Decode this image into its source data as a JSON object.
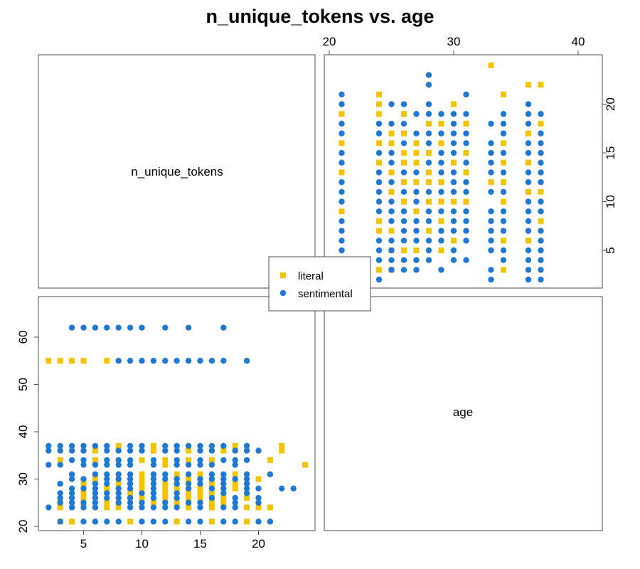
{
  "chart_data": {
    "type": "scatter",
    "title": "n_unique_tokens vs. age",
    "variables": [
      "n_unique_tokens",
      "age"
    ],
    "diagonal_labels": {
      "n_unique_tokens": "n_unique_tokens",
      "age": "age"
    },
    "axes": {
      "n_unique_tokens": {
        "range": [
          2,
          24
        ],
        "ticks": [
          5,
          10,
          15,
          20
        ]
      },
      "age": {
        "range": [
          21,
          62
        ],
        "ticks": [
          20,
          30,
          40,
          50,
          60
        ]
      }
    },
    "legend": {
      "placement": "center",
      "entries": [
        {
          "label": "literal",
          "color": "#F5C400",
          "marker": "square"
        },
        {
          "label": "sentimental",
          "color": "#1F78D2",
          "marker": "circle"
        }
      ]
    },
    "series": [
      {
        "name": "literal",
        "color": "#F5C400",
        "marker": "square",
        "points": [
          [
            3,
            21
          ],
          [
            4,
            21
          ],
          [
            9,
            21
          ],
          [
            13,
            21
          ],
          [
            16,
            21
          ],
          [
            19,
            21
          ],
          [
            3,
            24
          ],
          [
            7,
            24
          ],
          [
            8,
            24
          ],
          [
            14,
            24
          ],
          [
            16,
            24
          ],
          [
            19,
            24
          ],
          [
            20,
            24
          ],
          [
            21,
            24
          ],
          [
            3,
            25
          ],
          [
            5,
            25
          ],
          [
            7,
            25
          ],
          [
            11,
            25
          ],
          [
            13,
            25
          ],
          [
            16,
            25
          ],
          [
            17,
            25
          ],
          [
            5,
            26
          ],
          [
            10,
            26
          ],
          [
            12,
            26
          ],
          [
            14,
            26
          ],
          [
            15,
            26
          ],
          [
            17,
            26
          ],
          [
            19,
            26
          ],
          [
            5,
            27
          ],
          [
            9,
            27
          ],
          [
            12,
            27
          ],
          [
            14,
            27
          ],
          [
            15,
            27
          ],
          [
            16,
            27
          ],
          [
            7,
            28
          ],
          [
            10,
            28
          ],
          [
            12,
            28
          ],
          [
            13,
            28
          ],
          [
            15,
            28
          ],
          [
            18,
            28
          ],
          [
            5,
            29
          ],
          [
            8,
            29
          ],
          [
            10,
            29
          ],
          [
            12,
            29
          ],
          [
            16,
            29
          ],
          [
            18,
            29
          ],
          [
            6,
            30
          ],
          [
            10,
            30
          ],
          [
            14,
            30
          ],
          [
            20,
            30
          ],
          [
            10,
            31
          ],
          [
            13,
            31
          ],
          [
            15,
            31
          ],
          [
            18,
            31
          ],
          [
            12,
            33
          ],
          [
            24,
            33
          ],
          [
            3,
            34
          ],
          [
            6,
            34
          ],
          [
            10,
            34
          ],
          [
            12,
            34
          ],
          [
            14,
            34
          ],
          [
            16,
            34
          ],
          [
            21,
            34
          ],
          [
            6,
            36
          ],
          [
            11,
            36
          ],
          [
            14,
            36
          ],
          [
            17,
            36
          ],
          [
            22,
            36
          ],
          [
            8,
            37
          ],
          [
            11,
            37
          ],
          [
            18,
            37
          ],
          [
            22,
            37
          ],
          [
            2,
            55
          ],
          [
            3,
            55
          ],
          [
            4,
            55
          ],
          [
            5,
            55
          ],
          [
            7,
            55
          ]
        ]
      },
      {
        "name": "sentimental",
        "color": "#1F78D2",
        "marker": "circle",
        "points": [
          [
            3,
            21
          ],
          [
            5,
            21
          ],
          [
            6,
            21
          ],
          [
            7,
            21
          ],
          [
            8,
            21
          ],
          [
            10,
            21
          ],
          [
            11,
            21
          ],
          [
            12,
            21
          ],
          [
            14,
            21
          ],
          [
            15,
            21
          ],
          [
            17,
            21
          ],
          [
            18,
            21
          ],
          [
            20,
            21
          ],
          [
            21,
            21
          ],
          [
            2,
            24
          ],
          [
            4,
            24
          ],
          [
            5,
            24
          ],
          [
            6,
            24
          ],
          [
            9,
            24
          ],
          [
            10,
            24
          ],
          [
            11,
            24
          ],
          [
            12,
            24
          ],
          [
            13,
            24
          ],
          [
            15,
            24
          ],
          [
            17,
            24
          ],
          [
            18,
            24
          ],
          [
            3,
            25
          ],
          [
            4,
            25
          ],
          [
            5,
            25
          ],
          [
            6,
            25
          ],
          [
            8,
            25
          ],
          [
            9,
            25
          ],
          [
            10,
            25
          ],
          [
            12,
            25
          ],
          [
            14,
            25
          ],
          [
            15,
            25
          ],
          [
            18,
            25
          ],
          [
            20,
            25
          ],
          [
            3,
            26
          ],
          [
            4,
            26
          ],
          [
            6,
            26
          ],
          [
            7,
            26
          ],
          [
            8,
            26
          ],
          [
            9,
            26
          ],
          [
            11,
            26
          ],
          [
            13,
            26
          ],
          [
            16,
            26
          ],
          [
            18,
            26
          ],
          [
            20,
            26
          ],
          [
            3,
            27
          ],
          [
            4,
            27
          ],
          [
            6,
            27
          ],
          [
            7,
            27
          ],
          [
            8,
            27
          ],
          [
            10,
            27
          ],
          [
            11,
            27
          ],
          [
            13,
            27
          ],
          [
            17,
            27
          ],
          [
            19,
            27
          ],
          [
            4,
            28
          ],
          [
            5,
            28
          ],
          [
            6,
            28
          ],
          [
            8,
            28
          ],
          [
            9,
            28
          ],
          [
            11,
            28
          ],
          [
            14,
            28
          ],
          [
            16,
            28
          ],
          [
            17,
            28
          ],
          [
            19,
            28
          ],
          [
            20,
            28
          ],
          [
            22,
            28
          ],
          [
            23,
            28
          ],
          [
            3,
            29
          ],
          [
            6,
            29
          ],
          [
            7,
            29
          ],
          [
            9,
            29
          ],
          [
            11,
            29
          ],
          [
            13,
            29
          ],
          [
            14,
            29
          ],
          [
            15,
            29
          ],
          [
            17,
            29
          ],
          [
            19,
            29
          ],
          [
            4,
            30
          ],
          [
            5,
            30
          ],
          [
            7,
            30
          ],
          [
            8,
            30
          ],
          [
            9,
            30
          ],
          [
            11,
            30
          ],
          [
            12,
            30
          ],
          [
            13,
            30
          ],
          [
            15,
            30
          ],
          [
            16,
            30
          ],
          [
            17,
            30
          ],
          [
            18,
            30
          ],
          [
            19,
            30
          ],
          [
            4,
            31
          ],
          [
            6,
            31
          ],
          [
            7,
            31
          ],
          [
            8,
            31
          ],
          [
            9,
            31
          ],
          [
            11,
            31
          ],
          [
            12,
            31
          ],
          [
            14,
            31
          ],
          [
            16,
            31
          ],
          [
            17,
            31
          ],
          [
            19,
            31
          ],
          [
            21,
            31
          ],
          [
            2,
            33
          ],
          [
            3,
            33
          ],
          [
            5,
            33
          ],
          [
            6,
            33
          ],
          [
            7,
            33
          ],
          [
            8,
            33
          ],
          [
            9,
            33
          ],
          [
            11,
            33
          ],
          [
            13,
            33
          ],
          [
            14,
            33
          ],
          [
            15,
            33
          ],
          [
            16,
            33
          ],
          [
            18,
            33
          ],
          [
            4,
            34
          ],
          [
            5,
            34
          ],
          [
            7,
            34
          ],
          [
            8,
            34
          ],
          [
            9,
            34
          ],
          [
            11,
            34
          ],
          [
            13,
            34
          ],
          [
            15,
            34
          ],
          [
            17,
            34
          ],
          [
            18,
            34
          ],
          [
            19,
            34
          ],
          [
            2,
            36
          ],
          [
            3,
            36
          ],
          [
            4,
            36
          ],
          [
            5,
            36
          ],
          [
            7,
            36
          ],
          [
            8,
            36
          ],
          [
            9,
            36
          ],
          [
            10,
            36
          ],
          [
            12,
            36
          ],
          [
            13,
            36
          ],
          [
            15,
            36
          ],
          [
            16,
            36
          ],
          [
            18,
            36
          ],
          [
            19,
            36
          ],
          [
            20,
            36
          ],
          [
            2,
            37
          ],
          [
            3,
            37
          ],
          [
            4,
            37
          ],
          [
            5,
            37
          ],
          [
            6,
            37
          ],
          [
            7,
            37
          ],
          [
            9,
            37
          ],
          [
            10,
            37
          ],
          [
            12,
            37
          ],
          [
            13,
            37
          ],
          [
            14,
            37
          ],
          [
            15,
            37
          ],
          [
            16,
            37
          ],
          [
            17,
            37
          ],
          [
            19,
            37
          ],
          [
            8,
            55
          ],
          [
            9,
            55
          ],
          [
            10,
            55
          ],
          [
            11,
            55
          ],
          [
            12,
            55
          ],
          [
            13,
            55
          ],
          [
            14,
            55
          ],
          [
            15,
            55
          ],
          [
            16,
            55
          ],
          [
            17,
            55
          ],
          [
            19,
            55
          ],
          [
            4,
            62
          ],
          [
            5,
            62
          ],
          [
            6,
            62
          ],
          [
            7,
            62
          ],
          [
            8,
            62
          ],
          [
            9,
            62
          ],
          [
            10,
            62
          ],
          [
            12,
            62
          ],
          [
            14,
            62
          ],
          [
            17,
            62
          ]
        ]
      }
    ]
  }
}
